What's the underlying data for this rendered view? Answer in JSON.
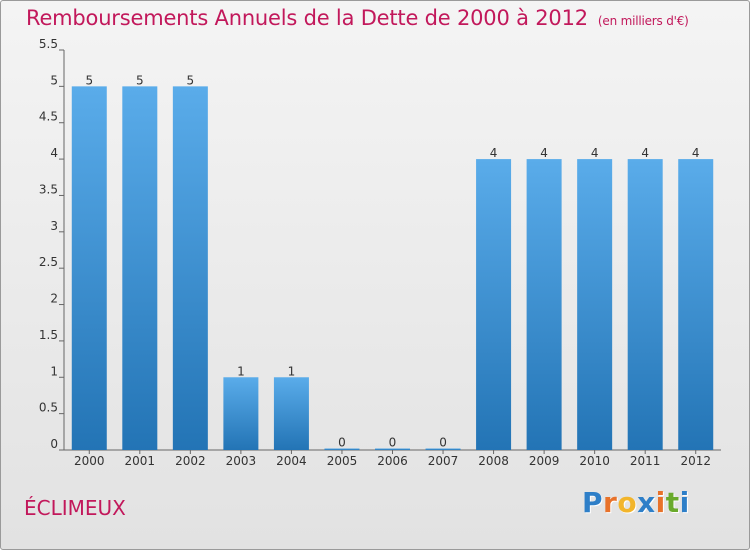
{
  "chart_data": {
    "type": "bar",
    "title": "Remboursements Annuels de la Dette de 2000 à 2012",
    "subtitle": "(en milliers d'€)",
    "categories": [
      "2000",
      "2001",
      "2002",
      "2003",
      "2004",
      "2005",
      "2006",
      "2007",
      "2008",
      "2009",
      "2010",
      "2011",
      "2012"
    ],
    "values": [
      5,
      5,
      5,
      1,
      1,
      0,
      0,
      0,
      4,
      4,
      4,
      4,
      4
    ],
    "ylim": [
      0,
      5.5
    ],
    "yticks": [
      "0",
      "0.5",
      "1",
      "1.5",
      "2",
      "2.5",
      "3",
      "3.5",
      "4",
      "4.5",
      "5",
      "5.5"
    ],
    "grid": false,
    "colors": {
      "bar_light": "#5aacea",
      "bar_dark": "#2374b5",
      "title": "#c2185b"
    }
  },
  "place_name": "ÉCLIMEUX",
  "logo": {
    "text": "Proxiti",
    "letters": [
      "P",
      "r",
      "o",
      "x",
      "i",
      "t",
      "i"
    ],
    "colors": [
      "#2e7fc8",
      "#e8722a",
      "#f2b52b",
      "#2e7fc8",
      "#e8722a",
      "#6aaa2c",
      "#2e7fc8"
    ]
  }
}
